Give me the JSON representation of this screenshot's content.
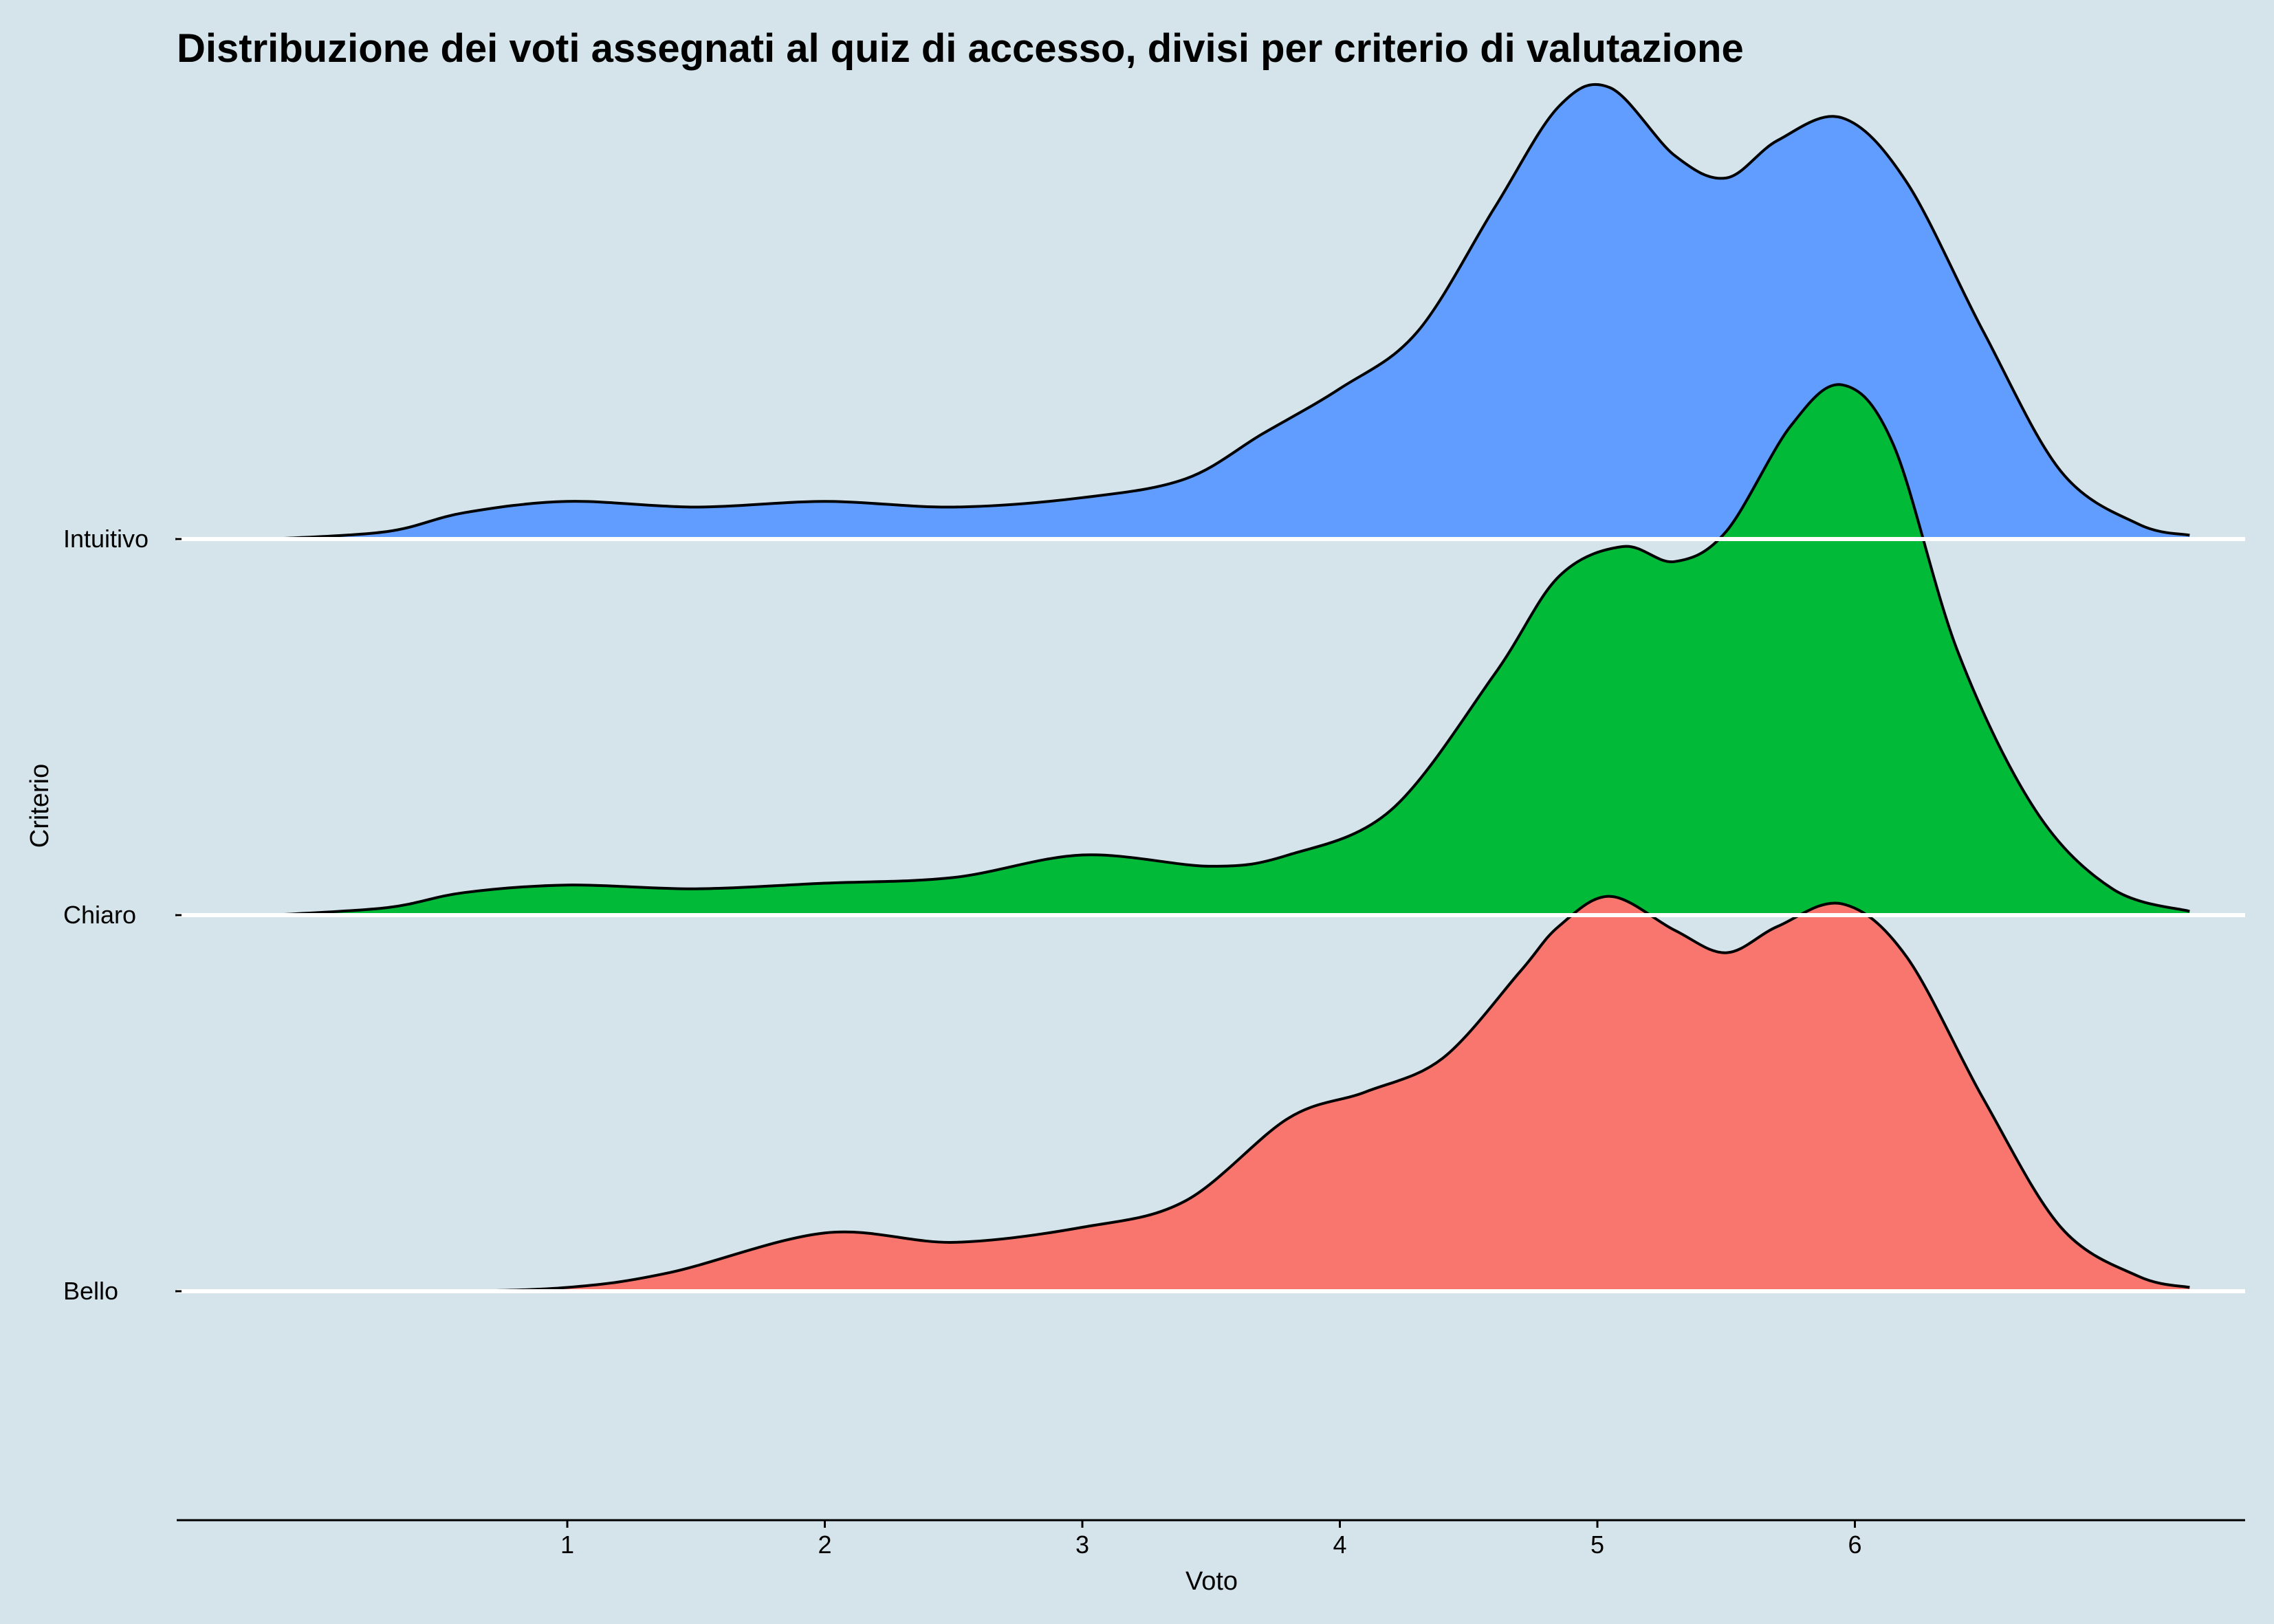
{
  "chart_data": {
    "type": "ridgeline",
    "title": "Distribuzione dei voti assegnati al quiz di accesso, divisi per criterio di valutazione",
    "xlabel": "Voto",
    "ylabel": "Criterio",
    "xticks": [
      1,
      2,
      3,
      4,
      5,
      6
    ],
    "xlim": [
      -0.15,
      7.3
    ],
    "categories": [
      "Intuitivo",
      "Chiaro",
      "Bello"
    ],
    "grid": false,
    "legend": "none",
    "series": [
      {
        "name": "Intuitivo",
        "color": "#619cff",
        "x": [
          -0.15,
          0.3,
          0.6,
          1.0,
          1.5,
          2.0,
          2.5,
          3.0,
          3.4,
          3.7,
          4.0,
          4.3,
          4.6,
          4.85,
          5.05,
          5.3,
          5.5,
          5.7,
          5.95,
          6.2,
          6.5,
          6.8,
          7.1,
          7.3
        ],
        "y": [
          0.0,
          0.02,
          0.07,
          0.1,
          0.085,
          0.1,
          0.085,
          0.11,
          0.16,
          0.28,
          0.4,
          0.55,
          0.88,
          1.15,
          1.2,
          1.02,
          0.96,
          1.06,
          1.12,
          0.95,
          0.55,
          0.18,
          0.04,
          0.01
        ]
      },
      {
        "name": "Chiaro",
        "color": "#00ba38",
        "x": [
          -0.15,
          0.3,
          0.6,
          1.0,
          1.5,
          2.0,
          2.5,
          3.0,
          3.5,
          3.8,
          4.2,
          4.6,
          4.85,
          5.1,
          5.3,
          5.5,
          5.75,
          5.95,
          6.15,
          6.4,
          6.7,
          7.0,
          7.3
        ],
        "y": [
          0.0,
          0.02,
          0.06,
          0.08,
          0.07,
          0.085,
          0.1,
          0.16,
          0.13,
          0.16,
          0.28,
          0.64,
          0.9,
          0.98,
          0.94,
          1.02,
          1.3,
          1.41,
          1.25,
          0.7,
          0.28,
          0.07,
          0.01
        ]
      },
      {
        "name": "Bello",
        "color": "#f8766d",
        "x": [
          -0.15,
          0.5,
          1.0,
          1.4,
          2.0,
          2.5,
          3.0,
          3.4,
          3.8,
          4.1,
          4.4,
          4.7,
          4.85,
          5.05,
          5.3,
          5.5,
          5.7,
          5.95,
          6.2,
          6.5,
          6.8,
          7.1,
          7.3
        ],
        "y": [
          0.0,
          0.0,
          0.01,
          0.05,
          0.155,
          0.13,
          0.17,
          0.24,
          0.46,
          0.53,
          0.62,
          0.85,
          0.97,
          1.05,
          0.96,
          0.9,
          0.97,
          1.03,
          0.89,
          0.51,
          0.17,
          0.04,
          0.01
        ]
      }
    ]
  }
}
